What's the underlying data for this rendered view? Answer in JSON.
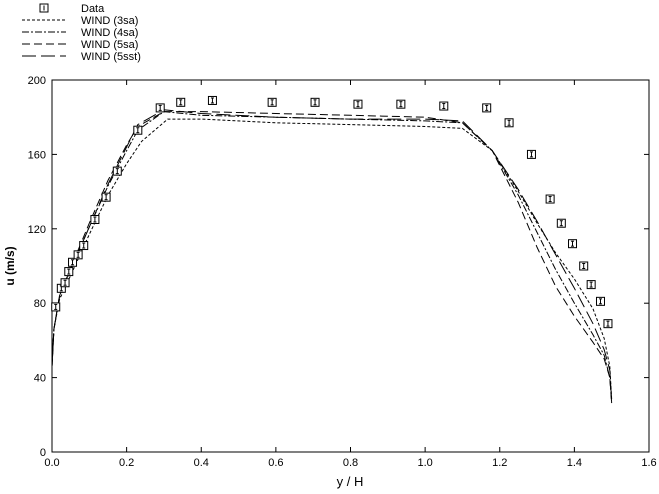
{
  "chart_data": {
    "type": "line",
    "title": "",
    "xlabel": "y / H",
    "ylabel": "u (m/s)",
    "xlim": [
      0,
      1.6
    ],
    "ylim": [
      0,
      200
    ],
    "x_ticks": [
      "0.0",
      "0.2",
      "0.4",
      "0.6",
      "0.8",
      "1.0",
      "1.2",
      "1.4",
      "1.6"
    ],
    "y_ticks": [
      "0",
      "40",
      "80",
      "120",
      "160",
      "200"
    ],
    "grid": false,
    "legend_position": "top-left, outside plot",
    "marker_glyph": "I",
    "series": [
      {
        "name": "Data",
        "kind": "markers",
        "points": [
          [
            0.01,
            78
          ],
          [
            0.025,
            88
          ],
          [
            0.035,
            91
          ],
          [
            0.045,
            97
          ],
          [
            0.055,
            102
          ],
          [
            0.07,
            106
          ],
          [
            0.085,
            111
          ],
          [
            0.115,
            125
          ],
          [
            0.145,
            137
          ],
          [
            0.175,
            151
          ],
          [
            0.23,
            173
          ],
          [
            0.29,
            185
          ],
          [
            0.345,
            188
          ],
          [
            0.43,
            189
          ],
          [
            0.59,
            188
          ],
          [
            0.705,
            188
          ],
          [
            0.82,
            187
          ],
          [
            0.935,
            187
          ],
          [
            1.05,
            186
          ],
          [
            1.165,
            185
          ],
          [
            1.225,
            177
          ],
          [
            1.285,
            160
          ],
          [
            1.335,
            136
          ],
          [
            1.365,
            123
          ],
          [
            1.395,
            112
          ],
          [
            1.425,
            100
          ],
          [
            1.445,
            90
          ],
          [
            1.47,
            81
          ],
          [
            1.49,
            69
          ]
        ]
      },
      {
        "name": "WIND (3sa)",
        "dash": "short",
        "points": [
          [
            0,
            46
          ],
          [
            0.005,
            66
          ],
          [
            0.02,
            82
          ],
          [
            0.05,
            95
          ],
          [
            0.1,
            117
          ],
          [
            0.15,
            138
          ],
          [
            0.2,
            155
          ],
          [
            0.24,
            167
          ],
          [
            0.31,
            179
          ],
          [
            0.4,
            179
          ],
          [
            0.6,
            177
          ],
          [
            0.8,
            176
          ],
          [
            1.0,
            175
          ],
          [
            1.1,
            174
          ],
          [
            1.18,
            162
          ],
          [
            1.25,
            140
          ],
          [
            1.3,
            123
          ],
          [
            1.35,
            107
          ],
          [
            1.4,
            93
          ],
          [
            1.45,
            77
          ],
          [
            1.48,
            61
          ],
          [
            1.495,
            46
          ],
          [
            1.5,
            28
          ]
        ]
      },
      {
        "name": "WIND (4sa)",
        "dash": "dash-dot",
        "points": [
          [
            0,
            46
          ],
          [
            0.005,
            66
          ],
          [
            0.02,
            84
          ],
          [
            0.05,
            98
          ],
          [
            0.1,
            121
          ],
          [
            0.15,
            143
          ],
          [
            0.2,
            162
          ],
          [
            0.23,
            173
          ],
          [
            0.3,
            183
          ],
          [
            0.4,
            181
          ],
          [
            0.6,
            180
          ],
          [
            0.8,
            179
          ],
          [
            1.0,
            178
          ],
          [
            1.1,
            177
          ],
          [
            1.18,
            162
          ],
          [
            1.25,
            138
          ],
          [
            1.3,
            118
          ],
          [
            1.35,
            98
          ],
          [
            1.4,
            80
          ],
          [
            1.45,
            63
          ],
          [
            1.48,
            52
          ],
          [
            1.495,
            40
          ],
          [
            1.5,
            26
          ]
        ]
      },
      {
        "name": "WIND (5sa)",
        "dash": "medium",
        "points": [
          [
            0,
            46
          ],
          [
            0.005,
            66
          ],
          [
            0.02,
            84
          ],
          [
            0.05,
            99
          ],
          [
            0.1,
            123
          ],
          [
            0.15,
            146
          ],
          [
            0.2,
            165
          ],
          [
            0.23,
            175
          ],
          [
            0.3,
            183
          ],
          [
            0.4,
            183
          ],
          [
            0.6,
            182
          ],
          [
            0.8,
            181
          ],
          [
            1.0,
            180
          ],
          [
            1.1,
            177
          ],
          [
            1.18,
            162
          ],
          [
            1.25,
            134
          ],
          [
            1.3,
            110
          ],
          [
            1.35,
            89
          ],
          [
            1.4,
            73
          ],
          [
            1.45,
            59
          ],
          [
            1.48,
            50
          ],
          [
            1.495,
            40
          ],
          [
            1.5,
            26
          ]
        ]
      },
      {
        "name": "WIND (5sst)",
        "dash": "long",
        "points": [
          [
            0,
            46
          ],
          [
            0.005,
            66
          ],
          [
            0.02,
            83
          ],
          [
            0.05,
            98
          ],
          [
            0.1,
            121
          ],
          [
            0.15,
            144
          ],
          [
            0.2,
            164
          ],
          [
            0.23,
            176
          ],
          [
            0.3,
            184
          ],
          [
            0.4,
            182
          ],
          [
            0.6,
            180
          ],
          [
            0.8,
            179
          ],
          [
            1.0,
            179
          ],
          [
            1.1,
            178
          ],
          [
            1.18,
            162
          ],
          [
            1.25,
            141
          ],
          [
            1.3,
            124
          ],
          [
            1.35,
            106
          ],
          [
            1.4,
            88
          ],
          [
            1.45,
            69
          ],
          [
            1.48,
            55
          ],
          [
            1.495,
            44
          ],
          [
            1.5,
            27
          ]
        ]
      }
    ]
  }
}
